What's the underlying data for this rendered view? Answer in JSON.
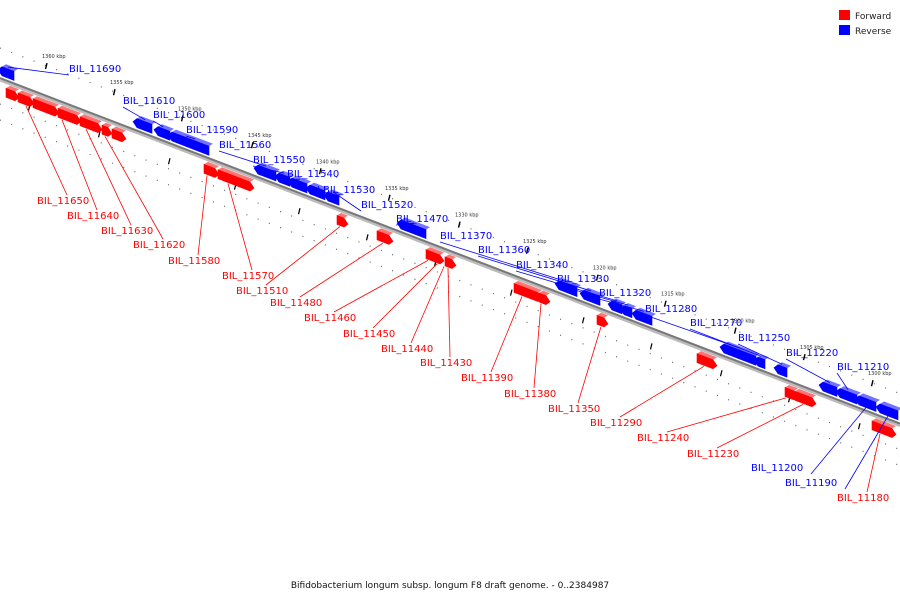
{
  "caption": "Bifidobacterium longum subsp. longum F8 draft genome. - 0..2384987",
  "legend": [
    {
      "label": "Forward",
      "color": "#ff0000"
    },
    {
      "label": "Reverse",
      "color": "#0000ff"
    }
  ],
  "colors": {
    "forward": "#ff0000",
    "reverse": "#0000ff",
    "backbone": "#777777"
  },
  "kbp_marks": [
    "1360 kbp",
    "1355 kbp",
    "1350 kbp",
    "1345 kbp",
    "1340 kbp",
    "1335 kbp",
    "1330 kbp",
    "1325 kbp",
    "1320 kbp",
    "1315 kbp",
    "1310 kbp",
    "1305 kbp",
    "1300 kbp"
  ],
  "reverse_genes": [
    "BIL_11690",
    "BIL_11610",
    "BIL_11600",
    "BIL_11590",
    "BIL_11560",
    "BIL_11550",
    "BIL_11540",
    "BIL_11530",
    "BIL_11520",
    "BIL_11470",
    "BIL_11370",
    "BIL_11360",
    "BIL_11340",
    "BIL_11330",
    "BIL_11320",
    "BIL_11280",
    "BIL_11270",
    "BIL_11250",
    "BIL_11220",
    "BIL_11210",
    "BIL_11200",
    "BIL_11190"
  ],
  "forward_genes": [
    "BIL_11650",
    "BIL_11640",
    "BIL_11630",
    "BIL_11620",
    "BIL_11580",
    "BIL_11570",
    "BIL_11510",
    "BIL_11480",
    "BIL_11460",
    "BIL_11450",
    "BIL_11440",
    "BIL_11430",
    "BIL_11390",
    "BIL_11380",
    "BIL_11350",
    "BIL_11290",
    "BIL_11240",
    "BIL_11230",
    "BIL_11180"
  ]
}
